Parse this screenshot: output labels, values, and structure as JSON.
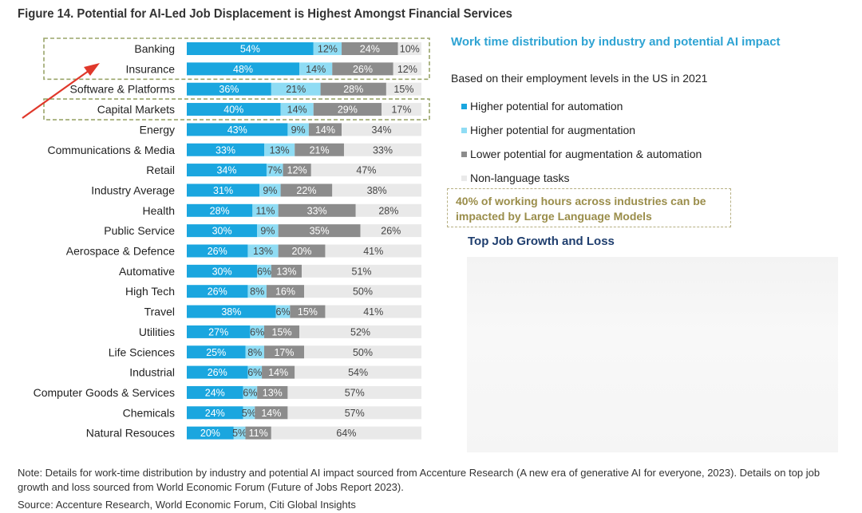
{
  "figure_title": "Figure 14. Potential for AI-Led Job Displacement is Highest Amongst Financial Services",
  "legend": {
    "title": "Work time distribution by industry and potential AI impact",
    "subtitle": "Based on their employment levels in the US in 2021",
    "items": [
      {
        "label": "Higher potential for automation",
        "color": "#1aa6df"
      },
      {
        "label": "Higher potential for augmentation",
        "color": "#8fdcf4"
      },
      {
        "label": "Lower potential for augmentation & automation",
        "color": "#8c8c8c"
      },
      {
        "label": "Non-language tasks",
        "color": "#e9e9e9"
      }
    ]
  },
  "callout": "40% of working hours across industries can be impacted by Large Language Models",
  "growth_title": "Top Job Growth and Loss",
  "note": "Note: Details for work-time distribution by industry and potential AI impact sourced from Accenture Research (A new era of generative AI for everyone, 2023). Details on top job growth and loss sourced from World Economic Forum (Future of Jobs Report 2023).",
  "source": "Source: Accenture Research, World Economic Forum, Citi Global Insights",
  "chart_data": {
    "type": "bar",
    "orientation": "horizontal",
    "stacked": true,
    "highlighted": [
      "Banking",
      "Insurance",
      "Capital Markets"
    ],
    "categories": [
      "Banking",
      "Insurance",
      "Software & Platforms",
      "Capital Markets",
      "Energy",
      "Communications & Media",
      "Retail",
      "Industry Average",
      "Health",
      "Public Service",
      "Aerospace & Defence",
      "Automative",
      "High Tech",
      "Travel",
      "Utilities",
      "Life Sciences",
      "Industrial",
      "Computer Goods & Services",
      "Chemicals",
      "Natural Resouces"
    ],
    "series": [
      {
        "name": "Higher potential for automation",
        "color": "#1aa6df",
        "values": [
          54,
          48,
          36,
          40,
          43,
          33,
          34,
          31,
          28,
          30,
          26,
          30,
          26,
          38,
          27,
          25,
          26,
          24,
          24,
          20
        ]
      },
      {
        "name": "Higher potential for augmentation",
        "color": "#8fdcf4",
        "values": [
          12,
          14,
          21,
          14,
          9,
          13,
          7,
          9,
          11,
          9,
          13,
          6,
          8,
          6,
          6,
          8,
          6,
          6,
          5,
          5
        ]
      },
      {
        "name": "Lower potential for augmentation & automation",
        "color": "#8c8c8c",
        "values": [
          24,
          26,
          28,
          29,
          14,
          21,
          12,
          22,
          33,
          35,
          20,
          13,
          16,
          15,
          15,
          17,
          14,
          13,
          14,
          11
        ]
      },
      {
        "name": "Non-language tasks",
        "color": "#e9e9e9",
        "values": [
          10,
          12,
          15,
          17,
          34,
          33,
          47,
          38,
          28,
          26,
          41,
          51,
          50,
          41,
          52,
          50,
          54,
          57,
          57,
          64
        ]
      }
    ],
    "value_suffix": "%",
    "xlim": [
      0,
      100
    ]
  }
}
